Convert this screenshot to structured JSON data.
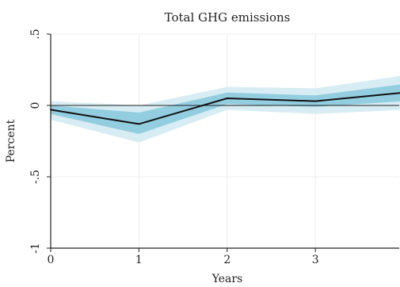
{
  "chart_data": {
    "type": "line",
    "title": "Total GHG emissions",
    "xlabel": "Years",
    "ylabel": "Percent",
    "x": [
      0,
      1,
      2,
      3,
      4
    ],
    "xticks": [
      0,
      1,
      2,
      3
    ],
    "xtick_labels": [
      "0",
      "1",
      "2",
      "3"
    ],
    "yticks": [
      -1,
      -0.5,
      0,
      0.5
    ],
    "ytick_labels": [
      "-1",
      "-.5",
      "0",
      ".5"
    ],
    "xlim": [
      0,
      3.95
    ],
    "ylim": [
      -1,
      0.5
    ],
    "grid": true,
    "series": [
      {
        "values": [
          -0.03,
          -0.13,
          0.05,
          0.03,
          0.09
        ]
      }
    ],
    "bands": [
      {
        "lower": [
          -0.1,
          -0.26,
          -0.03,
          -0.06,
          -0.03
        ],
        "upper": [
          0.03,
          0.0,
          0.13,
          0.12,
          0.21
        ]
      },
      {
        "lower": [
          -0.06,
          -0.2,
          0.01,
          -0.01,
          0.03
        ],
        "upper": [
          0.0,
          -0.05,
          0.09,
          0.07,
          0.15
        ]
      }
    ],
    "colors": {
      "outer_band": "#d7ecf3",
      "inner_band": "#93cde0",
      "line": "#111111",
      "axis": "#222222",
      "grid": "#ececec"
    }
  }
}
